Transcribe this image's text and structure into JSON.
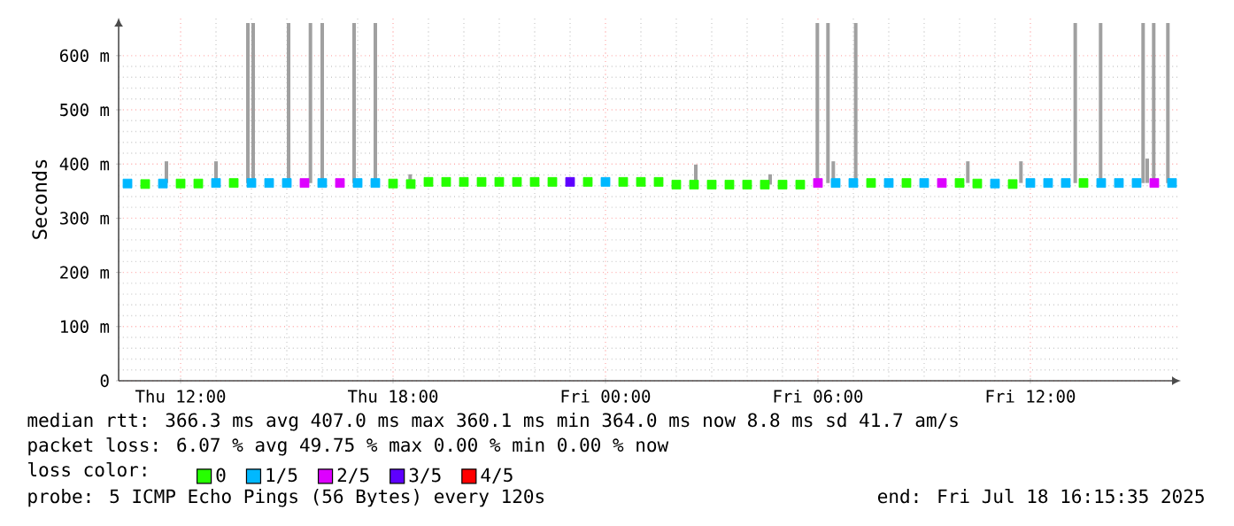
{
  "chart_data": {
    "type": "scatter",
    "ylabel": "Seconds",
    "legend_title": "loss color:",
    "legend": "bottom",
    "marker": "square",
    "grid": true,
    "xlim": [
      "2025-07-17T10:15",
      "2025-07-18T16:15"
    ],
    "xticks": [
      {
        "value": "2025-07-17T12:00",
        "label": "Thu 12:00"
      },
      {
        "value": "2025-07-17T18:00",
        "label": "Thu 18:00"
      },
      {
        "value": "2025-07-18T00:00",
        "label": "Fri 00:00"
      },
      {
        "value": "2025-07-18T06:00",
        "label": "Fri 06:00"
      },
      {
        "value": "2025-07-18T12:00",
        "label": "Fri 12:00"
      }
    ],
    "ylim": [
      0,
      670
    ],
    "yticks": [
      0,
      {
        "value": 100,
        "label": "100 m"
      },
      {
        "value": 200,
        "label": "200 m"
      },
      {
        "value": 300,
        "label": "300 m"
      },
      {
        "value": 400,
        "label": "400 m"
      },
      {
        "value": 500,
        "label": "500 m"
      },
      {
        "value": 600,
        "label": "600 m"
      }
    ],
    "series": [
      {
        "type": "bar",
        "color": "#a0a0a0",
        "x": [
          "2025-07-17T11:36",
          "2025-07-17T13:00",
          "2025-07-17T13:54",
          "2025-07-17T14:03",
          "2025-07-17T15:03",
          "2025-07-17T15:40",
          "2025-07-17T16:00",
          "2025-07-17T16:54",
          "2025-07-17T17:30",
          "2025-07-17T18:29",
          "2025-07-18T02:33",
          "2025-07-18T04:39",
          "2025-07-18T05:59",
          "2025-07-18T06:17",
          "2025-07-18T06:26",
          "2025-07-18T07:04",
          "2025-07-18T10:14",
          "2025-07-18T11:44",
          "2025-07-18T13:16",
          "2025-07-18T13:59",
          "2025-07-18T15:11",
          "2025-07-18T15:18",
          "2025-07-18T15:29",
          "2025-07-18T15:53"
        ],
        "base": [
          365,
          365,
          365,
          365,
          365,
          365,
          365,
          365,
          365,
          364,
          362,
          362,
          365,
          365,
          365,
          365,
          365,
          365,
          365,
          365,
          365,
          365,
          365,
          365
        ],
        "values": [
          40,
          40,
          295,
          295,
          295,
          295,
          295,
          295,
          295,
          17,
          37,
          19,
          295,
          295,
          40,
          295,
          40,
          40,
          295,
          295,
          295,
          45,
          295,
          295
        ]
      },
      {
        "name": "0",
        "color": "#26ff00",
        "x": [
          "2025-07-17T11:00",
          "2025-07-17T12:00",
          "2025-07-17T12:30",
          "2025-07-17T13:30",
          "2025-07-17T18:00",
          "2025-07-17T18:30",
          "2025-07-17T19:00",
          "2025-07-17T19:30",
          "2025-07-17T20:00",
          "2025-07-17T20:30",
          "2025-07-17T21:00",
          "2025-07-17T21:30",
          "2025-07-17T22:00",
          "2025-07-17T22:30",
          "2025-07-17T23:30",
          "2025-07-18T00:30",
          "2025-07-18T01:00",
          "2025-07-18T01:30",
          "2025-07-18T02:00",
          "2025-07-18T02:30",
          "2025-07-18T03:00",
          "2025-07-18T03:30",
          "2025-07-18T04:00",
          "2025-07-18T04:30",
          "2025-07-18T05:00",
          "2025-07-18T05:30",
          "2025-07-18T07:30",
          "2025-07-18T08:30",
          "2025-07-18T10:00",
          "2025-07-18T10:30",
          "2025-07-18T11:30",
          "2025-07-18T13:30"
        ],
        "values": [
          363,
          364,
          364,
          365,
          364,
          363,
          367,
          367,
          367,
          367,
          367,
          367,
          367,
          367,
          367,
          367,
          367,
          367,
          362,
          362,
          362,
          362,
          362,
          362,
          362,
          362,
          365,
          365,
          365,
          364,
          363,
          365
        ]
      },
      {
        "name": "1/5",
        "color": "#00b8ff",
        "x": [
          "2025-07-17T10:30",
          "2025-07-17T11:30",
          "2025-07-17T13:00",
          "2025-07-17T14:00",
          "2025-07-17T14:30",
          "2025-07-17T15:00",
          "2025-07-17T16:00",
          "2025-07-17T17:00",
          "2025-07-17T17:30",
          "2025-07-18T00:00",
          "2025-07-18T06:30",
          "2025-07-18T07:00",
          "2025-07-18T08:00",
          "2025-07-18T09:00",
          "2025-07-18T11:00",
          "2025-07-18T12:00",
          "2025-07-18T12:30",
          "2025-07-18T13:00",
          "2025-07-18T14:00",
          "2025-07-18T14:30",
          "2025-07-18T15:00",
          "2025-07-18T16:00"
        ],
        "values": [
          364,
          364,
          365,
          365,
          365,
          365,
          365,
          365,
          365,
          367,
          365,
          365,
          365,
          365,
          364,
          365,
          365,
          365,
          365,
          365,
          365,
          365
        ]
      },
      {
        "name": "2/5",
        "color": "#dd00ff",
        "x": [
          "2025-07-17T15:30",
          "2025-07-17T16:30",
          "2025-07-18T06:00",
          "2025-07-18T09:30",
          "2025-07-18T15:30"
        ],
        "values": [
          365,
          365,
          365,
          365,
          365
        ]
      },
      {
        "name": "3/5",
        "color": "#5e00ff",
        "x": [
          "2025-07-17T23:00"
        ],
        "values": [
          367
        ]
      },
      {
        "name": "4/5",
        "color": "#ff0000"
      }
    ],
    "annotations": [
      "median rtt:  366.3 ms avg  407.0 ms max  360.1 ms min  364.0 ms now  8.8 ms sd  41.7   am/s",
      "packet loss: 6.07 % avg  49.75 % max  0.00 % min  0.00 % now",
      "probe:       5 ICMP Echo Pings (56 Bytes) every 120s",
      "end: Fri Jul 18 16:15:35 2025"
    ]
  }
}
